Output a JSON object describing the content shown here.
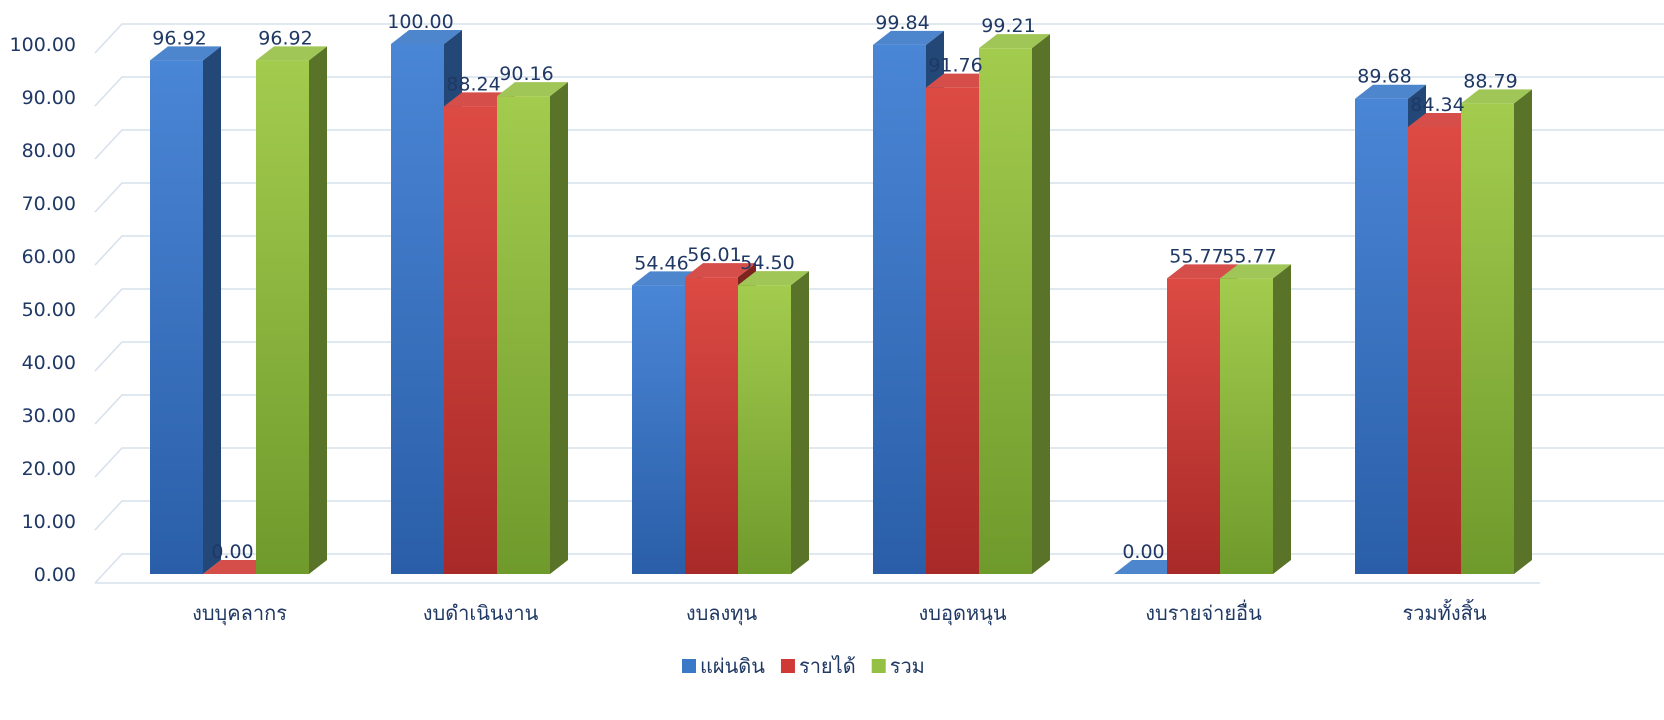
{
  "chart_data": {
    "type": "bar",
    "style": "3d-clustered-column",
    "categories": [
      "งบบุคลากร",
      "งบดำเนินงาน",
      "งบลงทุน",
      "งบอุดหนุน",
      "งบรายจ่ายอื่น",
      "รวมทั้งสิ้น"
    ],
    "series": [
      {
        "name": "แผ่นดิน",
        "values": [
          96.92,
          100.0,
          54.46,
          99.84,
          0.0,
          89.68
        ],
        "labels": [
          "96.92",
          "100.00",
          "54.46",
          "99.84",
          "0.00",
          "89.68"
        ],
        "color": "#3a78c8"
      },
      {
        "name": "รายได้",
        "values": [
          0.0,
          88.24,
          56.01,
          91.76,
          55.77,
          84.34
        ],
        "labels": [
          "0.00",
          "88.24",
          "56.01",
          "91.76",
          "55.77",
          "84.34"
        ],
        "color": "#d03a36"
      },
      {
        "name": "รวม",
        "values": [
          96.92,
          90.16,
          54.5,
          99.21,
          55.77,
          88.79
        ],
        "labels": [
          "96.92",
          "90.16",
          "54.50",
          "99.21",
          "55.77",
          "88.79"
        ],
        "color": "#94c044"
      }
    ],
    "y_ticks": [
      "0.00",
      "10.00",
      "20.00",
      "30.00",
      "40.00",
      "50.00",
      "60.00",
      "70.00",
      "80.00",
      "90.00",
      "100.00"
    ],
    "ylim": [
      0,
      100
    ],
    "grid": true,
    "legend_position": "bottom"
  }
}
